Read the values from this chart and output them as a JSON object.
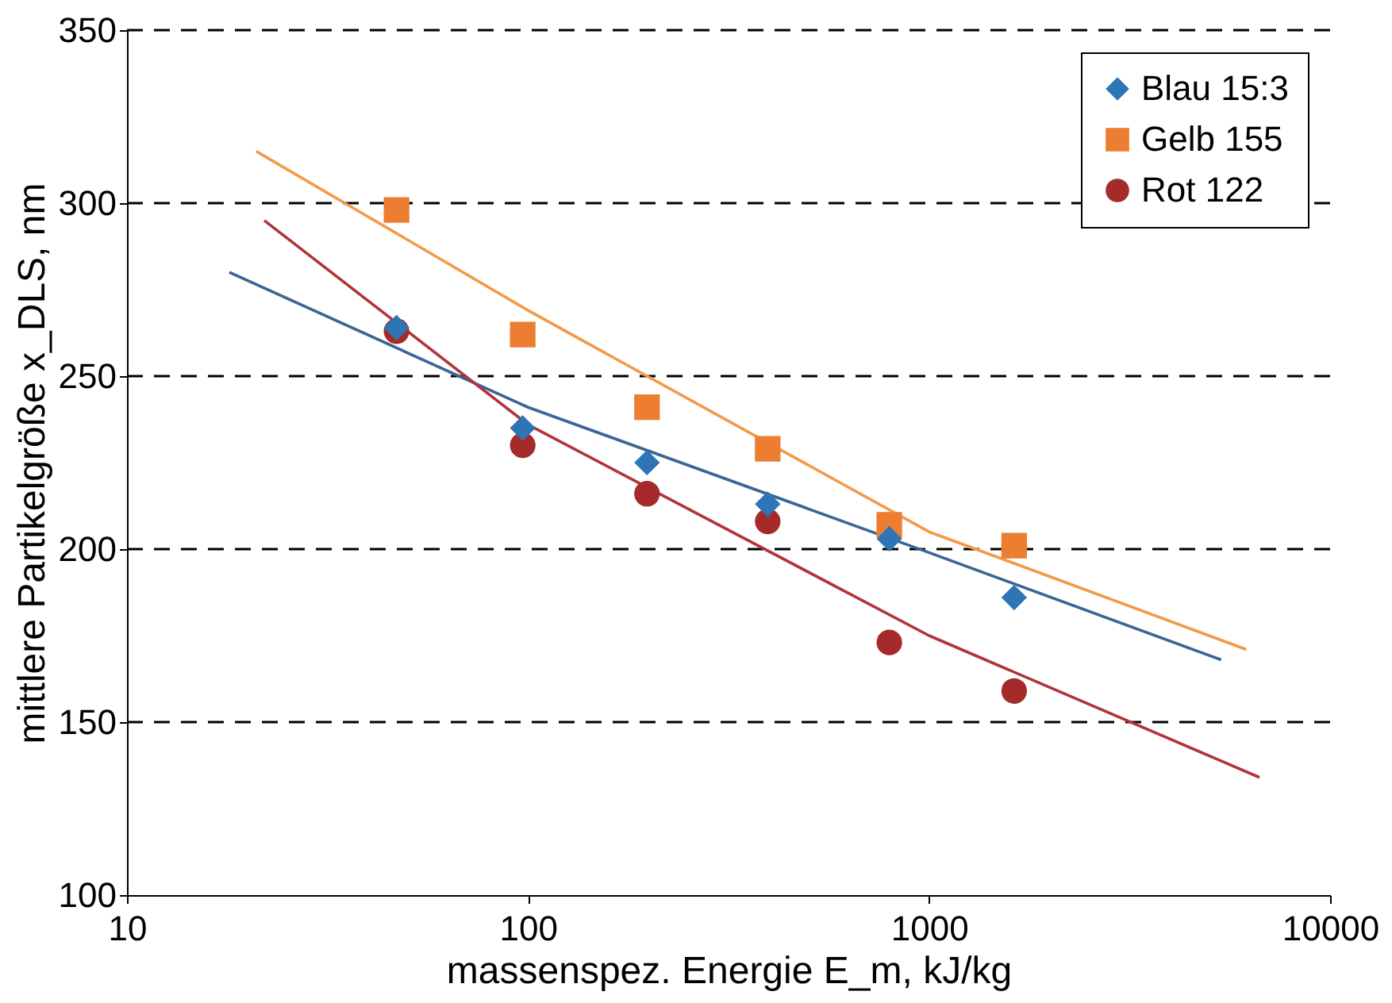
{
  "chart_data": {
    "type": "scatter",
    "xlabel": "massenspez. Energie E_m, kJ/kg",
    "ylabel": "mittlere Partikelgröße x_DLS, nm",
    "x": [
      47,
      97,
      198,
      396,
      796,
      1630
    ],
    "series": [
      {
        "name": "Blau 15:3",
        "color": "#2e75b6",
        "marker": "diamond",
        "values": [
          264,
          235,
          225,
          213,
          203,
          186
        ]
      },
      {
        "name": "Gelb 155",
        "color": "#ed7d31",
        "marker": "square",
        "values": [
          298,
          262,
          241,
          229,
          207,
          201
        ]
      },
      {
        "name": "Rot 122",
        "color": "#a52a2a",
        "marker": "circle",
        "values": [
          263,
          230,
          216,
          208,
          173,
          159
        ]
      },
      {
        "type": "line",
        "color": "#3c6496",
        "x": [
          18,
          100,
          1000,
          5350
        ],
        "values": [
          280,
          241,
          199,
          168
        ]
      },
      {
        "type": "line",
        "color": "#f39a4a",
        "x": [
          21,
          100,
          1000,
          6180
        ],
        "values": [
          315,
          269,
          205,
          171
        ]
      },
      {
        "type": "line",
        "color": "#b0343a",
        "x": [
          22,
          100,
          1000,
          6670
        ],
        "values": [
          295,
          236,
          175,
          134
        ]
      }
    ],
    "log": "x",
    "xlim": [
      10,
      10000
    ],
    "xticks": [
      10,
      100,
      1000,
      10000
    ],
    "ylim": [
      100,
      350
    ],
    "yticks": [
      100,
      150,
      200,
      250,
      300,
      350
    ],
    "grid": "y",
    "legend": "top right"
  }
}
